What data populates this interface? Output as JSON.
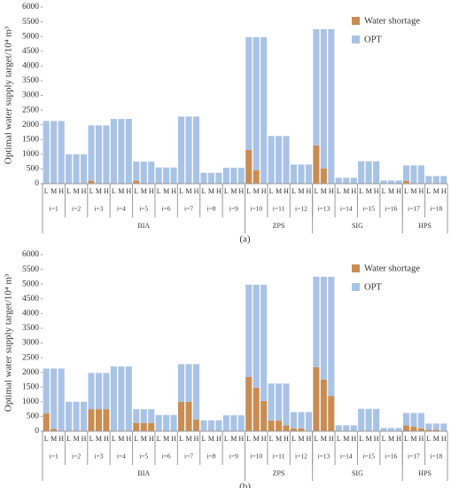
{
  "chart_data": [
    {
      "type": "bar",
      "stacked": true,
      "caption": "(a)",
      "y_label": "Optimal water supply target/10⁴ m³",
      "legend": "upper right",
      "categories": [
        "L",
        "M",
        "H",
        "L",
        "M",
        "H",
        "L",
        "M",
        "H",
        "L",
        "M",
        "H",
        "L",
        "M",
        "H",
        "L",
        "M",
        "H",
        "L",
        "M",
        "H",
        "L",
        "M",
        "H",
        "L",
        "M",
        "H",
        "L",
        "M",
        "H",
        "L",
        "M",
        "H",
        "L",
        "M",
        "H",
        "L",
        "M",
        "H",
        "L",
        "M",
        "H",
        "L",
        "M",
        "H",
        "L",
        "M",
        "H",
        "L",
        "M",
        "H",
        "L",
        "M",
        "H"
      ],
      "category_groups": [
        {
          "label": "BIA",
          "groups": [
            "i=1",
            "i=2",
            "i=3",
            "i=4",
            "i=5",
            "i=6",
            "i=7",
            "i=8",
            "i=9"
          ]
        },
        {
          "label": "ZPS",
          "groups": [
            "i=10",
            "i=11",
            "i=12"
          ]
        },
        {
          "label": "SIG",
          "groups": [
            "i=13",
            "i=14",
            "i=15",
            "i=16"
          ]
        },
        {
          "label": "HPS",
          "groups": [
            "i=17",
            "i=18"
          ]
        }
      ],
      "series": [
        {
          "name": "Water shortage",
          "color": "#c98d52",
          "values": [
            0,
            0,
            0,
            0,
            0,
            0,
            100,
            0,
            0,
            0,
            0,
            0,
            100,
            0,
            0,
            0,
            0,
            0,
            0,
            0,
            0,
            0,
            0,
            0,
            0,
            0,
            0,
            1150,
            460,
            0,
            0,
            0,
            0,
            0,
            0,
            0,
            1300,
            520,
            0,
            0,
            0,
            0,
            0,
            0,
            0,
            0,
            0,
            0,
            100,
            0,
            0,
            0,
            0,
            0
          ]
        },
        {
          "name": "OPT",
          "color": "#a9c3e6",
          "values": [
            2130,
            2130,
            2130,
            1000,
            1000,
            1000,
            1880,
            1980,
            1980,
            2200,
            2200,
            2200,
            650,
            750,
            750,
            550,
            550,
            550,
            2280,
            2280,
            2280,
            370,
            370,
            370,
            540,
            540,
            540,
            3830,
            4520,
            4980,
            1620,
            1620,
            1620,
            650,
            650,
            650,
            3950,
            4730,
            5250,
            200,
            200,
            200,
            760,
            760,
            760,
            110,
            110,
            110,
            520,
            620,
            620,
            260,
            260,
            260
          ]
        }
      ],
      "ylim": [
        0,
        6000
      ],
      "yticks": [
        0,
        500,
        1000,
        1500,
        2000,
        2500,
        3000,
        3500,
        4000,
        4500,
        5000,
        5500,
        6000
      ]
    },
    {
      "type": "bar",
      "stacked": true,
      "caption": "(b)",
      "y_label": "Optimal water supply target/10⁴ m³",
      "legend": "upper right",
      "categories": [
        "L",
        "M",
        "H",
        "L",
        "M",
        "H",
        "L",
        "M",
        "H",
        "L",
        "M",
        "H",
        "L",
        "M",
        "H",
        "L",
        "M",
        "H",
        "L",
        "M",
        "H",
        "L",
        "M",
        "H",
        "L",
        "M",
        "H",
        "L",
        "M",
        "H",
        "L",
        "M",
        "H",
        "L",
        "M",
        "H",
        "L",
        "M",
        "H",
        "L",
        "M",
        "H",
        "L",
        "M",
        "H",
        "L",
        "M",
        "H",
        "L",
        "M",
        "H",
        "L",
        "M",
        "H"
      ],
      "category_groups": [
        {
          "label": "BIA",
          "groups": [
            "i=1",
            "i=2",
            "i=3",
            "i=4",
            "i=5",
            "i=6",
            "i=7",
            "i=8",
            "i=9"
          ]
        },
        {
          "label": "ZPS",
          "groups": [
            "i=10",
            "i=11",
            "i=12"
          ]
        },
        {
          "label": "SIG",
          "groups": [
            "i=13",
            "i=14",
            "i=15",
            "i=16"
          ]
        },
        {
          "label": "HPS",
          "groups": [
            "i=17",
            "i=18"
          ]
        }
      ],
      "series": [
        {
          "name": "Water shortage",
          "color": "#c98d52",
          "values": [
            600,
            80,
            0,
            0,
            0,
            0,
            750,
            750,
            750,
            0,
            0,
            0,
            280,
            280,
            280,
            0,
            0,
            0,
            1000,
            1000,
            400,
            0,
            0,
            0,
            0,
            0,
            0,
            1850,
            1480,
            1030,
            360,
            360,
            200,
            100,
            100,
            0,
            2180,
            1750,
            1200,
            0,
            0,
            0,
            0,
            0,
            0,
            0,
            0,
            0,
            200,
            150,
            100,
            50,
            50,
            0
          ]
        },
        {
          "name": "OPT",
          "color": "#a9c3e6",
          "values": [
            1530,
            2050,
            2130,
            1000,
            1000,
            1000,
            1230,
            1230,
            1230,
            2200,
            2200,
            2200,
            470,
            470,
            470,
            550,
            550,
            550,
            1280,
            1280,
            1880,
            370,
            370,
            370,
            540,
            540,
            540,
            3130,
            3500,
            3950,
            1260,
            1260,
            1420,
            550,
            550,
            650,
            3070,
            3500,
            4050,
            200,
            200,
            200,
            760,
            760,
            760,
            110,
            110,
            110,
            420,
            470,
            520,
            210,
            210,
            260
          ]
        }
      ],
      "ylim": [
        0,
        6000
      ],
      "yticks": [
        0,
        500,
        1000,
        1500,
        2000,
        2500,
        3000,
        3500,
        4000,
        4500,
        5000,
        5500,
        6000
      ]
    }
  ]
}
